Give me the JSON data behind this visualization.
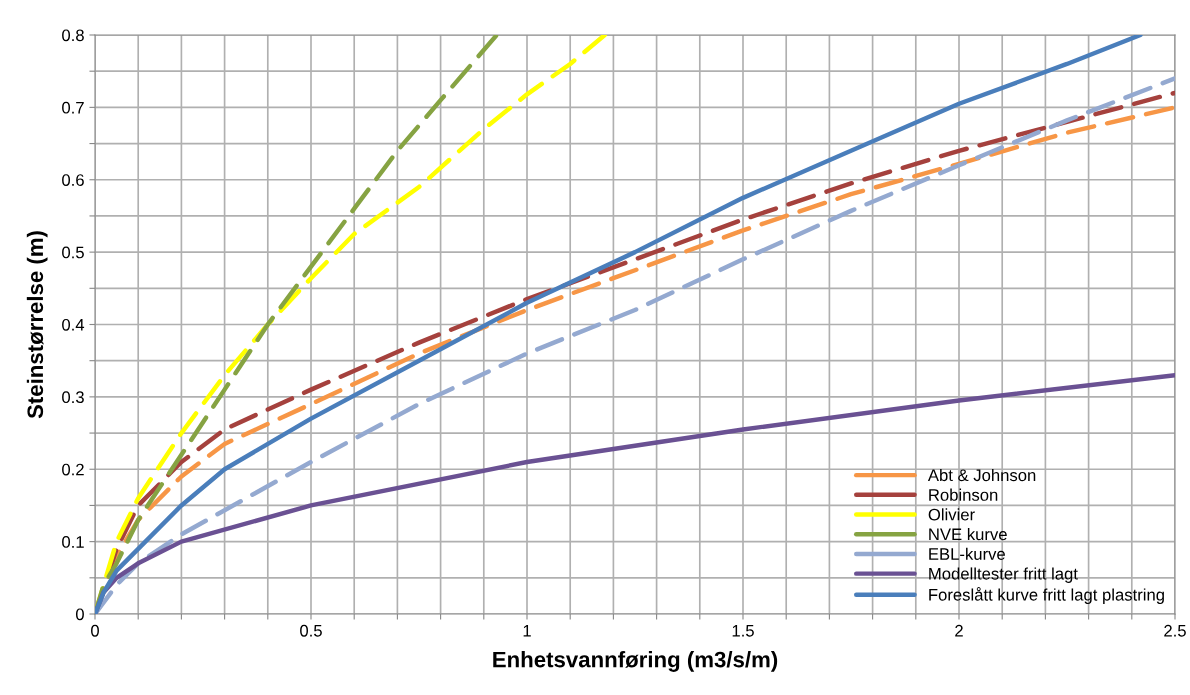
{
  "chart_data": {
    "type": "line",
    "xlabel": "Enhetsvannføring (m3/s/m)",
    "ylabel": "Steinstørrelse (m)",
    "xlim": [
      0,
      2.5
    ],
    "ylim": [
      0,
      0.8
    ],
    "xticks": [
      0,
      {
        "value": 0.1,
        "label": null
      },
      {
        "value": 0.2,
        "label": null
      },
      {
        "value": 0.3,
        "label": null
      },
      {
        "value": 0.4,
        "label": null
      },
      0.5,
      {
        "value": 0.6,
        "label": null
      },
      {
        "value": 0.7,
        "label": null
      },
      {
        "value": 0.8,
        "label": null
      },
      {
        "value": 0.9,
        "label": null
      },
      1,
      {
        "value": 1.1,
        "label": null
      },
      {
        "value": 1.2,
        "label": null
      },
      {
        "value": 1.3,
        "label": null
      },
      {
        "value": 1.4,
        "label": null
      },
      1.5,
      {
        "value": 1.6,
        "label": null
      },
      {
        "value": 1.7,
        "label": null
      },
      {
        "value": 1.8,
        "label": null
      },
      {
        "value": 1.9,
        "label": null
      },
      2,
      {
        "value": 2.1,
        "label": null
      },
      {
        "value": 2.2,
        "label": null
      },
      {
        "value": 2.3,
        "label": null
      },
      {
        "value": 2.4,
        "label": null
      },
      2.5
    ],
    "yticks": [
      0,
      {
        "value": 0.05,
        "label": null
      },
      0.1,
      {
        "value": 0.15,
        "label": null
      },
      0.2,
      {
        "value": 0.25,
        "label": null
      },
      0.3,
      {
        "value": 0.35,
        "label": null
      },
      0.4,
      {
        "value": 0.45,
        "label": null
      },
      0.5,
      {
        "value": 0.55,
        "label": null
      },
      0.6,
      {
        "value": 0.65,
        "label": null
      },
      0.7,
      {
        "value": 0.75,
        "label": null
      },
      0.8
    ],
    "grid": true,
    "legend": "bottom right",
    "marker": "none",
    "series": [
      {
        "name": "Abt & Johnson",
        "color": "#f79646",
        "line_style": "dashed",
        "x": [
          0,
          0.05,
          0.1,
          0.2,
          0.3,
          0.5,
          0.75,
          1,
          1.25,
          1.5,
          1.75,
          2,
          2.25,
          2.5
        ],
        "values": [
          0,
          0.08,
          0.13,
          0.19,
          0.235,
          0.29,
          0.36,
          0.42,
          0.475,
          0.53,
          0.58,
          0.622,
          0.665,
          0.7
        ]
      },
      {
        "name": "Robinson",
        "color": "#a5413d",
        "line_style": "dashed",
        "x": [
          0,
          0.05,
          0.1,
          0.2,
          0.3,
          0.5,
          0.75,
          1,
          1.25,
          1.5,
          1.75,
          2,
          2.25,
          2.5
        ],
        "values": [
          0,
          0.09,
          0.15,
          0.21,
          0.255,
          0.31,
          0.375,
          0.435,
          0.49,
          0.545,
          0.595,
          0.64,
          0.68,
          0.72
        ]
      },
      {
        "name": "Olivier",
        "color": "#ffff00",
        "line_style": "dashed",
        "x": [
          0,
          0.05,
          0.1,
          0.2,
          0.3,
          0.4,
          0.5,
          0.6,
          0.75,
          0.9,
          1,
          1.1,
          1.18
        ],
        "values": [
          0,
          0.1,
          0.16,
          0.25,
          0.33,
          0.4,
          0.464,
          0.525,
          0.59,
          0.67,
          0.718,
          0.76,
          0.8
        ]
      },
      {
        "name": "NVE kurve",
        "color": "#86a342",
        "line_style": "dashed",
        "x": [
          0,
          0.02,
          0.05,
          0.1,
          0.2,
          0.3,
          0.4,
          0.5,
          0.6,
          0.7,
          0.8,
          0.93
        ],
        "values": [
          0,
          0.04,
          0.07,
          0.13,
          0.22,
          0.31,
          0.4,
          0.48,
          0.56,
          0.64,
          0.71,
          0.8
        ]
      },
      {
        "name": "EBL-kurve",
        "color": "#94a9d0",
        "line_style": "dashed",
        "x": [
          0,
          0.05,
          0.1,
          0.2,
          0.5,
          0.75,
          1,
          1.25,
          1.5,
          1.75,
          2,
          2.25,
          2.5
        ],
        "values": [
          0,
          0.04,
          0.07,
          0.11,
          0.21,
          0.29,
          0.36,
          0.42,
          0.49,
          0.557,
          0.62,
          0.682,
          0.74
        ]
      },
      {
        "name": "Modelltester fritt lagt",
        "color": "#6a5193",
        "line_style": "solid",
        "x": [
          0,
          0.02,
          0.05,
          0.1,
          0.2,
          0.5,
          1,
          1.5,
          2,
          2.5
        ],
        "values": [
          0,
          0.03,
          0.05,
          0.07,
          0.1,
          0.15,
          0.21,
          0.255,
          0.295,
          0.33
        ]
      },
      {
        "name": "Foreslått kurve fritt lagt plastring",
        "color": "#4a7ebb",
        "line_style": "solid",
        "x": [
          0,
          0.02,
          0.05,
          0.1,
          0.2,
          0.3,
          0.5,
          0.75,
          1,
          1.25,
          1.5,
          1.75,
          2,
          2.25,
          2.42
        ],
        "values": [
          0,
          0.03,
          0.06,
          0.09,
          0.15,
          0.2,
          0.27,
          0.35,
          0.43,
          0.5,
          0.575,
          0.64,
          0.705,
          0.76,
          0.8
        ]
      }
    ]
  }
}
